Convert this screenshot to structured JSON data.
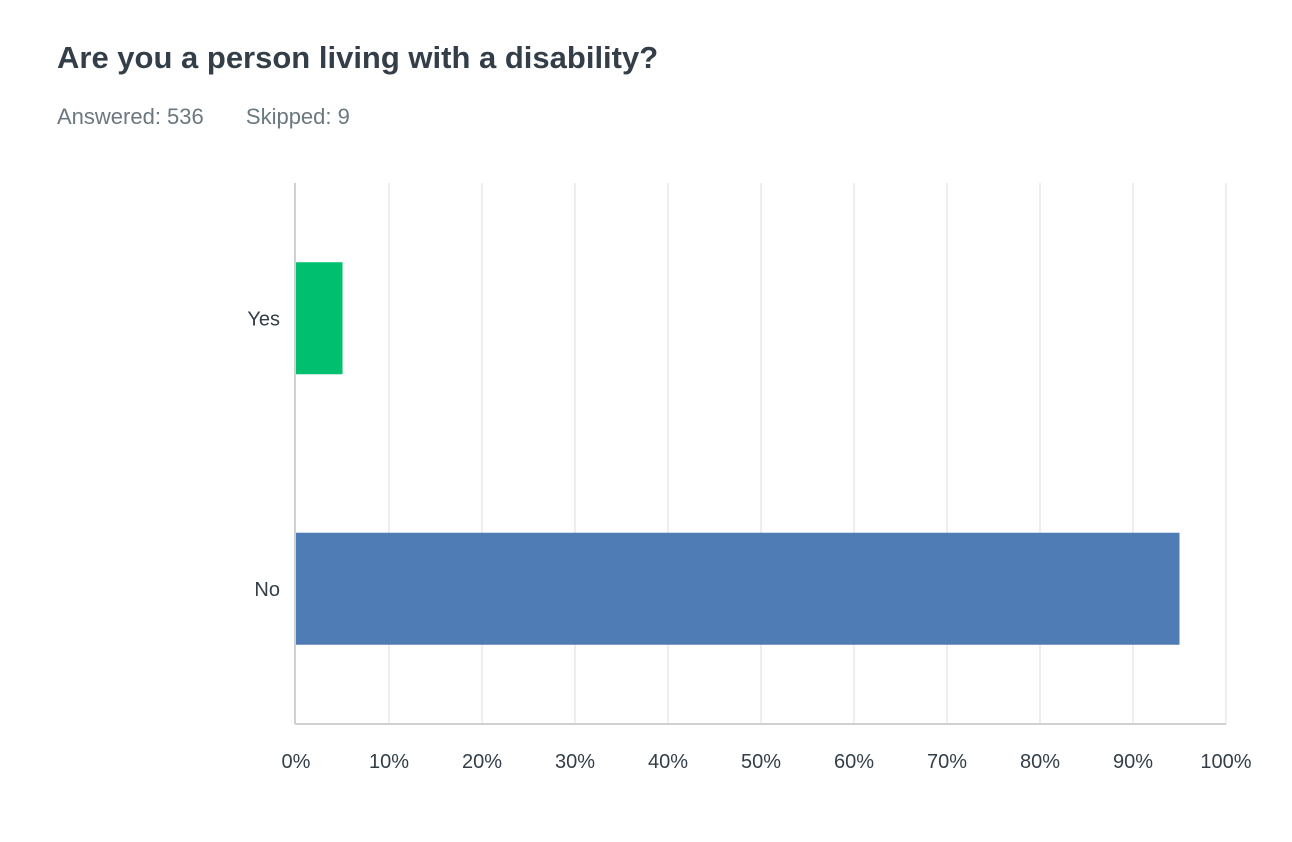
{
  "question": "Are you a person living with a disability?",
  "answered": "Answered: 536",
  "skipped": "Skipped: 9",
  "chart_data": {
    "type": "bar",
    "orientation": "horizontal",
    "title": "Are you a person living with a disability?",
    "categories": [
      "Yes",
      "No"
    ],
    "values": [
      5.0,
      95.0
    ],
    "colors": [
      "#00bf6f",
      "#507cb6"
    ],
    "xlim": [
      0,
      100
    ],
    "x_ticks": [
      "0%",
      "10%",
      "20%",
      "30%",
      "40%",
      "50%",
      "60%",
      "70%",
      "80%",
      "90%",
      "100%"
    ],
    "grid": true
  }
}
